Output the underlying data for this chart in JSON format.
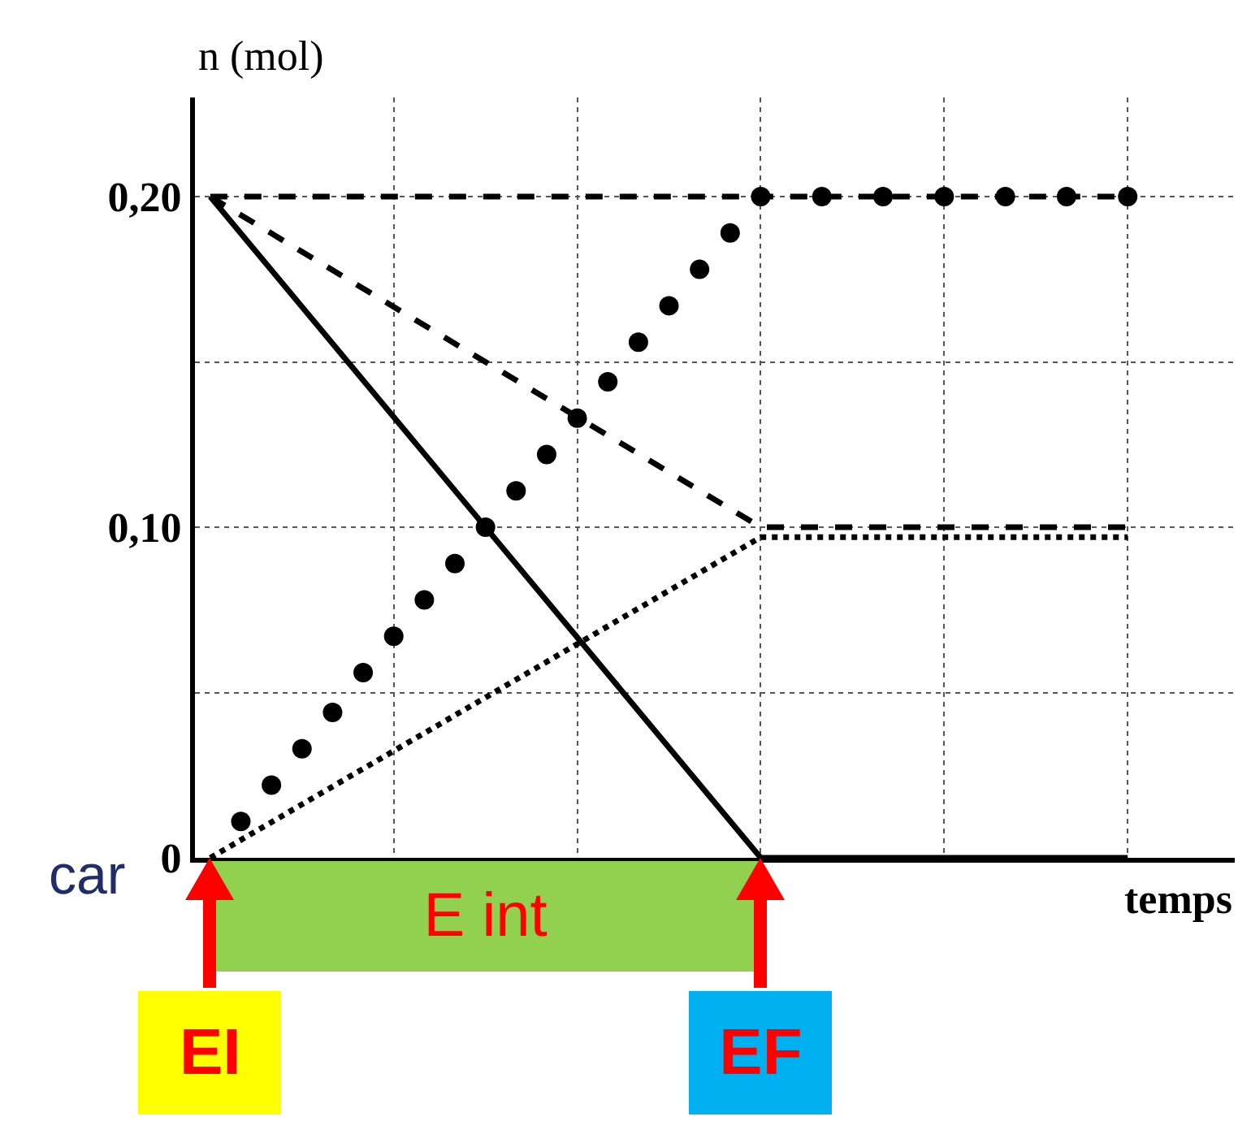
{
  "chart_data": {
    "type": "line",
    "xlabel": "temps",
    "ylabel": "n (mol)",
    "categories": [
      null,
      null,
      null,
      null,
      null,
      null,
      null,
      null,
      null,
      null,
      null,
      null,
      null,
      null,
      null,
      null,
      null,
      null,
      null,
      null,
      null,
      null,
      null,
      null,
      null,
      null,
      null,
      null,
      null,
      null,
      null,
      null,
      null,
      null
    ],
    "ylim": [
      0,
      0.23
    ],
    "yticks": [
      {
        "value": 0,
        "label": "0"
      },
      {
        "value": 0.05,
        "label": null
      },
      {
        "value": 0.1,
        "label": "0,10"
      },
      {
        "value": 0.15,
        "label": null
      },
      {
        "value": 0.2,
        "label": "0,20"
      }
    ],
    "tick_labels": "y",
    "grid": true,
    "series": [
      {
        "color": "#000000",
        "line_style": "dashed",
        "marker": "none",
        "values": [
          0.2,
          null,
          null,
          null,
          null,
          null,
          null,
          null,
          null,
          null,
          null,
          null,
          null,
          null,
          null,
          null,
          null,
          null,
          null,
          null,
          null,
          null,
          null,
          null,
          null,
          null,
          null,
          null,
          null,
          null,
          0.2,
          null,
          null,
          null
        ]
      },
      {
        "color": "#000000",
        "line_style": "dashed",
        "marker": "none",
        "values": [
          0.2,
          null,
          null,
          null,
          null,
          null,
          null,
          null,
          null,
          null,
          null,
          null,
          null,
          null,
          null,
          null,
          null,
          null,
          0.1,
          null,
          null,
          null,
          null,
          null,
          null,
          null,
          null,
          null,
          null,
          null,
          0.1,
          null,
          null,
          null
        ]
      },
      {
        "color": "#000000",
        "line_style": "solid",
        "marker": "none",
        "values": [
          0.2,
          null,
          null,
          null,
          null,
          null,
          null,
          null,
          null,
          null,
          null,
          null,
          null,
          null,
          null,
          null,
          null,
          null,
          0,
          null,
          null,
          null,
          null,
          null,
          null,
          null,
          null,
          null,
          null,
          null,
          0,
          null,
          null,
          null
        ]
      },
      {
        "color": "#000000",
        "line_style": "dotted",
        "marker": "none",
        "values": [
          0,
          null,
          null,
          null,
          null,
          null,
          null,
          null,
          null,
          null,
          null,
          null,
          null,
          null,
          null,
          null,
          null,
          null,
          0.097,
          null,
          null,
          null,
          null,
          null,
          null,
          null,
          null,
          null,
          null,
          null,
          0.097,
          null,
          null,
          null
        ]
      },
      {
        "type": "scatter",
        "color": "#000000",
        "marker": "circle",
        "values": [
          null,
          0.011,
          0.022,
          0.033,
          0.044,
          0.056,
          0.067,
          0.078,
          0.089,
          0.1,
          0.111,
          0.122,
          0.133,
          0.144,
          0.156,
          0.167,
          0.178,
          0.189,
          0.2,
          null,
          0.2,
          null,
          0.2,
          null,
          0.2,
          null,
          0.2,
          null,
          0.2,
          null,
          0.2,
          null,
          null,
          null
        ]
      }
    ],
    "annotations": [
      "EI",
      "E int",
      "EF",
      "car"
    ]
  }
}
